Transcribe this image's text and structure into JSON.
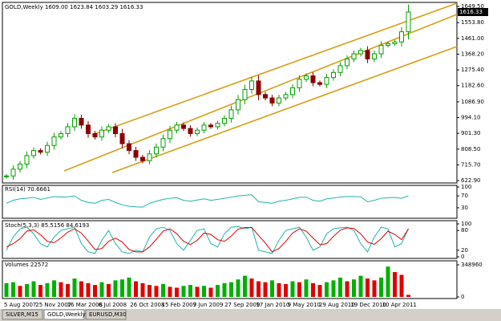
{
  "chart_data": {
    "type": "candlestick",
    "header": "GOLD,Weekly  1609.00 1623.84 1603.29 1616.33",
    "closes": [
      650,
      690,
      720,
      770,
      800,
      790,
      830,
      880,
      900,
      940,
      990,
      950,
      900,
      880,
      920,
      940,
      900,
      840,
      800,
      760,
      740,
      780,
      820,
      870,
      920,
      950,
      930,
      900,
      920,
      950,
      940,
      960,
      990,
      1040,
      1100,
      1160,
      1210,
      1130,
      1110,
      1080,
      1110,
      1130,
      1170,
      1220,
      1240,
      1200,
      1190,
      1230,
      1260,
      1300,
      1340,
      1370,
      1390,
      1340,
      1370,
      1420,
      1430,
      1440,
      1500,
      1616.33
    ],
    "ylim": [
      622.9,
      1649.5
    ],
    "yticks": [
      {
        "value": 1649.5,
        "label": "1649.50"
      },
      {
        "value": 1553.8,
        "label": "1553.80"
      },
      {
        "value": 1461,
        "label": "1461.00"
      },
      {
        "value": 1368.2,
        "label": "1368.20"
      },
      {
        "value": 1275.4,
        "label": "1275.40"
      },
      {
        "value": 1182.6,
        "label": "1182.60"
      },
      {
        "value": 1086.9,
        "label": "1086.90"
      },
      {
        "value": 994.1,
        "label": "994.10"
      },
      {
        "value": 901.3,
        "label": "901.30"
      },
      {
        "value": 808.5,
        "label": "808.50"
      },
      {
        "value": 715.7,
        "label": "715.70"
      },
      {
        "value": 622.9,
        "label": "622.90"
      }
    ],
    "current_price": {
      "value": 1616.33,
      "label": "1616.33"
    },
    "up_color": "#00a000",
    "down_color": "#8b0000",
    "dates": [
      "5 Aug 2007",
      "25 Nov 2007",
      "16 Mar 2008",
      "6 Jul 2008",
      "26 Oct 2008",
      "15 Feb 2009",
      "7 Jun 2009",
      "27 Sep 2009",
      "17 Jan 2010",
      "9 May 2010",
      "29 Aug 2010",
      "19 Dec 2010",
      "10 Apr 2011"
    ],
    "rsi": {
      "header": "RSI(14) 70.6661",
      "color": "#20b2aa",
      "ylim": [
        0,
        100
      ],
      "yticks": [
        100,
        70,
        30
      ],
      "values": [
        45,
        55,
        60,
        62,
        65,
        58,
        63,
        68,
        66,
        67,
        70,
        55,
        48,
        45,
        55,
        58,
        48,
        40,
        35,
        33,
        32,
        45,
        52,
        58,
        62,
        64,
        55,
        52,
        56,
        60,
        55,
        58,
        62,
        66,
        70,
        72,
        74,
        50,
        48,
        45,
        52,
        55,
        60,
        65,
        66,
        55,
        52,
        60,
        63,
        66,
        68,
        68,
        67,
        50,
        55,
        62,
        64,
        65,
        62,
        70.6661
      ]
    },
    "stoch": {
      "header": "Stoch(5,3,3) 85.5156 84.6193",
      "ylim": [
        0,
        100
      ],
      "yticks": [
        100,
        80,
        20,
        0
      ],
      "series": [
        {
          "color": "#20b2aa",
          "values": [
            20,
            60,
            85,
            90,
            70,
            40,
            30,
            60,
            80,
            85,
            90,
            40,
            15,
            10,
            50,
            80,
            40,
            15,
            10,
            20,
            15,
            60,
            85,
            90,
            80,
            40,
            20,
            50,
            80,
            85,
            40,
            30,
            70,
            90,
            92,
            85,
            90,
            20,
            15,
            10,
            50,
            80,
            85,
            90,
            60,
            20,
            30,
            70,
            85,
            88,
            90,
            80,
            40,
            15,
            60,
            90,
            85,
            30,
            40,
            85.5156
          ]
        },
        {
          "color": "#e00000",
          "values": [
            30,
            40,
            55,
            78,
            82,
            67,
            47,
            43,
            57,
            75,
            85,
            72,
            48,
            22,
            25,
            47,
            57,
            45,
            22,
            15,
            15,
            30,
            53,
            78,
            85,
            70,
            47,
            37,
            50,
            72,
            68,
            52,
            47,
            63,
            84,
            89,
            89,
            65,
            42,
            15,
            25,
            47,
            72,
            85,
            78,
            57,
            37,
            40,
            62,
            81,
            88,
            86,
            70,
            45,
            38,
            55,
            78,
            68,
            52,
            84.6193
          ]
        }
      ]
    },
    "volumes": {
      "header": "Volumes 22572",
      "up_color": "#00b000",
      "down_color": "#e00000",
      "ylim": [
        0,
        348960
      ],
      "yticks": [
        348960,
        0
      ],
      "values": [
        150000,
        160000,
        120000,
        140000,
        170000,
        130000,
        150000,
        180000,
        160000,
        140000,
        200000,
        170000,
        150000,
        130000,
        160000,
        140000,
        180000,
        190000,
        210000,
        170000,
        150000,
        130000,
        120000,
        140000,
        110000,
        100000,
        120000,
        130000,
        110000,
        120000,
        100000,
        130000,
        150000,
        160000,
        190000,
        230000,
        200000,
        170000,
        160000,
        180000,
        150000,
        140000,
        170000,
        160000,
        190000,
        150000,
        130000,
        160000,
        180000,
        210000,
        170000,
        190000,
        230000,
        200000,
        180000,
        210000,
        330000,
        270000,
        240000,
        22572
      ]
    }
  },
  "tabs": [
    "SILVER,M15",
    "GOLD,Weekly",
    "EURUSD,M30"
  ]
}
